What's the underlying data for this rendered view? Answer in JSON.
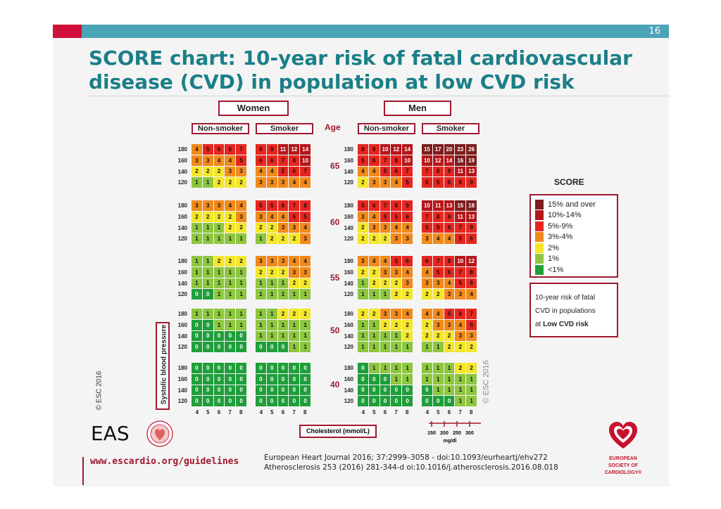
{
  "page": {
    "number": "16",
    "title": "SCORE chart: 10-year risk of fatal cardiovascular disease (CVD) in population at low CVD risk"
  },
  "chart": {
    "women_label": "Women",
    "men_label": "Men",
    "age_label": "Age",
    "non_smoker_label": "Non-smoker",
    "smoker_label": "Smoker",
    "sbp_axis_label": "Systolic blood pressure",
    "chol_axis_label": "Cholesterol (mmol/L)",
    "copyright_left": "© ESC 2016",
    "copyright_right": "© ESC 2016",
    "sbp_values": [
      "180",
      "160",
      "140",
      "120"
    ],
    "chol_values": [
      "4",
      "5",
      "6",
      "7",
      "8"
    ],
    "mgdl_values": [
      "150",
      "200",
      "250",
      "300"
    ],
    "mgdl_unit": "mg/dl"
  },
  "chart_data": {
    "type": "heatmap",
    "title": "SCORE chart: 10-year risk of fatal cardiovascular disease (CVD) in population at low CVD risk",
    "row_axis": "Systolic blood pressure",
    "col_axis": "Cholesterol (mmol/L)",
    "rows": [
      "180",
      "160",
      "140",
      "120"
    ],
    "cols": [
      "4",
      "5",
      "6",
      "7",
      "8"
    ],
    "ages": [
      {
        "age": "65",
        "panels": [
          [
            [
              4,
              5,
              6,
              6,
              7
            ],
            [
              3,
              3,
              4,
              4,
              5
            ],
            [
              2,
              2,
              2,
              3,
              3
            ],
            [
              1,
              1,
              2,
              2,
              2
            ]
          ],
          [
            [
              9,
              9,
              11,
              12,
              14
            ],
            [
              6,
              6,
              7,
              8,
              10
            ],
            [
              4,
              4,
              5,
              6,
              7
            ],
            [
              3,
              3,
              3,
              4,
              4
            ]
          ],
          [
            [
              8,
              9,
              10,
              12,
              14
            ],
            [
              5,
              6,
              7,
              8,
              10
            ],
            [
              4,
              4,
              5,
              6,
              7
            ],
            [
              2,
              3,
              3,
              4,
              5
            ]
          ],
          [
            [
              15,
              17,
              20,
              23,
              26
            ],
            [
              10,
              12,
              14,
              16,
              19
            ],
            [
              7,
              8,
              9,
              11,
              13
            ],
            [
              5,
              5,
              6,
              8,
              9
            ]
          ]
        ]
      },
      {
        "age": "60",
        "panels": [
          [
            [
              3,
              3,
              3,
              4,
              4
            ],
            [
              2,
              2,
              2,
              2,
              3
            ],
            [
              1,
              1,
              1,
              2,
              2
            ],
            [
              1,
              1,
              1,
              1,
              1
            ]
          ],
          [
            [
              5,
              5,
              6,
              7,
              8
            ],
            [
              3,
              4,
              4,
              5,
              5
            ],
            [
              2,
              2,
              3,
              3,
              4
            ],
            [
              1,
              2,
              2,
              2,
              3
            ]
          ],
          [
            [
              5,
              6,
              7,
              8,
              9
            ],
            [
              3,
              4,
              5,
              5,
              6
            ],
            [
              2,
              3,
              3,
              4,
              4
            ],
            [
              2,
              2,
              2,
              3,
              3
            ]
          ],
          [
            [
              10,
              11,
              13,
              15,
              18
            ],
            [
              7,
              8,
              9,
              11,
              13
            ],
            [
              5,
              5,
              6,
              7,
              9
            ],
            [
              3,
              4,
              4,
              5,
              6
            ]
          ]
        ]
      },
      {
        "age": "55",
        "panels": [
          [
            [
              1,
              1,
              2,
              2,
              2
            ],
            [
              1,
              1,
              1,
              1,
              1
            ],
            [
              1,
              1,
              1,
              1,
              1
            ],
            [
              0,
              0,
              1,
              1,
              1
            ]
          ],
          [
            [
              3,
              3,
              3,
              4,
              4
            ],
            [
              2,
              2,
              2,
              3,
              3
            ],
            [
              1,
              1,
              1,
              2,
              2
            ],
            [
              1,
              1,
              1,
              1,
              1
            ]
          ],
          [
            [
              3,
              4,
              4,
              5,
              6
            ],
            [
              2,
              2,
              3,
              3,
              4
            ],
            [
              1,
              2,
              2,
              2,
              3
            ],
            [
              1,
              1,
              1,
              2,
              2
            ]
          ],
          [
            [
              6,
              7,
              8,
              10,
              12
            ],
            [
              4,
              5,
              6,
              7,
              8
            ],
            [
              3,
              3,
              4,
              5,
              6
            ],
            [
              2,
              2,
              3,
              3,
              4
            ]
          ]
        ]
      },
      {
        "age": "50",
        "panels": [
          [
            [
              1,
              1,
              1,
              1,
              1
            ],
            [
              0,
              0,
              1,
              1,
              1
            ],
            [
              0,
              0,
              0,
              0,
              0
            ],
            [
              0,
              0,
              0,
              0,
              0
            ]
          ],
          [
            [
              1,
              1,
              2,
              2,
              2
            ],
            [
              1,
              1,
              1,
              1,
              1
            ],
            [
              1,
              1,
              1,
              1,
              1
            ],
            [
              0,
              0,
              0,
              1,
              1
            ]
          ],
          [
            [
              2,
              2,
              3,
              3,
              4
            ],
            [
              1,
              1,
              2,
              2,
              2
            ],
            [
              1,
              1,
              1,
              1,
              2
            ],
            [
              1,
              1,
              1,
              1,
              1
            ]
          ],
          [
            [
              4,
              4,
              5,
              6,
              7
            ],
            [
              2,
              3,
              3,
              4,
              5
            ],
            [
              2,
              2,
              2,
              3,
              3
            ],
            [
              1,
              1,
              2,
              2,
              2
            ]
          ]
        ]
      },
      {
        "age": "40",
        "panels": [
          [
            [
              0,
              0,
              0,
              0,
              0
            ],
            [
              0,
              0,
              0,
              0,
              0
            ],
            [
              0,
              0,
              0,
              0,
              0
            ],
            [
              0,
              0,
              0,
              0,
              0
            ]
          ],
          [
            [
              0,
              0,
              0,
              0,
              0
            ],
            [
              0,
              0,
              0,
              0,
              0
            ],
            [
              0,
              0,
              0,
              0,
              0
            ],
            [
              0,
              0,
              0,
              0,
              0
            ]
          ],
          [
            [
              0,
              1,
              1,
              1,
              1
            ],
            [
              0,
              0,
              0,
              1,
              1
            ],
            [
              0,
              0,
              0,
              0,
              0
            ],
            [
              0,
              0,
              0,
              0,
              0
            ]
          ],
          [
            [
              1,
              1,
              1,
              2,
              2
            ],
            [
              1,
              1,
              1,
              1,
              1
            ],
            [
              0,
              1,
              1,
              1,
              1
            ],
            [
              0,
              0,
              0,
              1,
              1
            ]
          ]
        ]
      }
    ],
    "panel_order": [
      "Women Non-smoker",
      "Women Smoker",
      "Men Non-smoker",
      "Men Smoker"
    ]
  },
  "legend": {
    "title": "SCORE",
    "items": [
      {
        "label": "15% and over",
        "color": "#7d1d1d"
      },
      {
        "label": "10%-14%",
        "color": "#b5161a"
      },
      {
        "label": "5%-9%",
        "color": "#e6261f"
      },
      {
        "label": "3%-4%",
        "color": "#f08a1c"
      },
      {
        "label": "2%",
        "color": "#f4e62a"
      },
      {
        "label": "1%",
        "color": "#8dc63f"
      },
      {
        "label": "<1%",
        "color": "#1f9e3a"
      }
    ]
  },
  "note": {
    "line1": "10-year risk of fatal",
    "line2": "CVD in populations",
    "line3_prefix": "at ",
    "line3_bold": "Low CVD risk"
  },
  "footer": {
    "eas": "EAS",
    "url": "www.escardio.org/guidelines",
    "ref1": "European Heart Journal 2016; 37:2999–3058 - doi:10.1093/eurheartj/ehv272",
    "ref2": "Atherosclerosis 253 (2016) 281-344-d oi:10.1016/j.atherosclerosis.2016.08.018",
    "esc_lines": [
      "EUROPEAN",
      "SOCIETY OF",
      "CARDIOLOGY®"
    ]
  }
}
